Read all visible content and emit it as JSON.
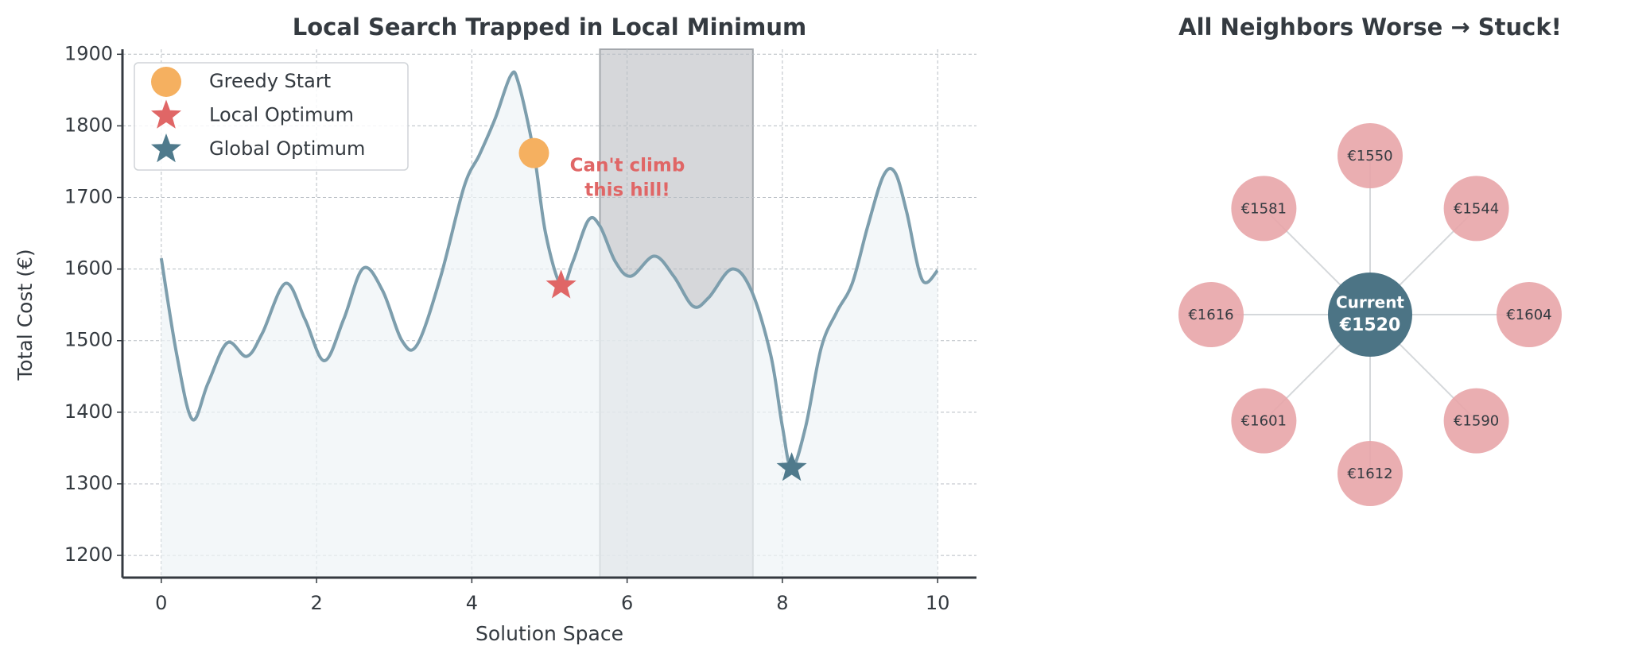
{
  "chart_data": [
    {
      "type": "line",
      "title": "Local Search Trapped in Local Minimum",
      "x_label": "Solution Space",
      "y_label": "Total Cost (€)",
      "xlim": [
        -0.5,
        10.5
      ],
      "ylim": [
        1169,
        1907
      ],
      "xticks": [
        0,
        2,
        4,
        6,
        8,
        10
      ],
      "yticks": [
        1200,
        1300,
        1400,
        1500,
        1600,
        1700,
        1800,
        1900
      ],
      "grid": true,
      "x": [
        0,
        0.2,
        0.4,
        0.6,
        0.85,
        1.1,
        1.3,
        1.6,
        1.85,
        2.1,
        2.35,
        2.6,
        2.85,
        3.1,
        3.3,
        3.6,
        3.9,
        4.1,
        4.3,
        4.5,
        4.6,
        4.8,
        4.95,
        5.15,
        5.3,
        5.5,
        5.65,
        5.85,
        6.05,
        6.35,
        6.6,
        6.85,
        7.05,
        7.35,
        7.6,
        7.85,
        8.0,
        8.12,
        8.3,
        8.5,
        8.7,
        8.9,
        9.1,
        9.3,
        9.45,
        9.6,
        9.8,
        10
      ],
      "series": [
        {
          "color": "#7d9ead",
          "fill": "#eef4f6",
          "values": [
            1615,
            1480,
            1390,
            1440,
            1497,
            1478,
            1510,
            1580,
            1530,
            1472,
            1530,
            1601,
            1570,
            1500,
            1495,
            1590,
            1715,
            1760,
            1810,
            1870,
            1860,
            1762,
            1650,
            1577,
            1610,
            1668,
            1660,
            1610,
            1590,
            1618,
            1590,
            1548,
            1560,
            1600,
            1570,
            1480,
            1380,
            1322,
            1380,
            1490,
            1540,
            1580,
            1660,
            1730,
            1735,
            1680,
            1585,
            1598
          ]
        }
      ],
      "markers": [
        {
          "name": "Greedy Start",
          "shape": "circle",
          "color": "#f5b060",
          "x": 4.8,
          "y": 1762
        },
        {
          "name": "Local Optimum",
          "shape": "star",
          "color": "#e06666",
          "x": 5.15,
          "y": 1577
        },
        {
          "name": "Global Optimum",
          "shape": "star",
          "color": "#4f7a8c",
          "x": 8.12,
          "y": 1322
        }
      ],
      "highlight_span": [
        5.65,
        7.62
      ],
      "highlight_color": "#a3a7ac",
      "annotation": [
        "Can't climb",
        "this hill!"
      ],
      "annotation_color": "#e06666",
      "legend": "upper left"
    },
    {
      "type": "neighbors",
      "title": "All Neighbors Worse → Stuck!",
      "center_label": "Current",
      "center_value": 1520,
      "center_value_label": "€1520",
      "center_color": "#4c7485",
      "neighbor_color": "#e8a5a8",
      "values": [
        1550,
        1544,
        1604,
        1590,
        1612,
        1601,
        1616,
        1581
      ],
      "value_labels": [
        "€1550",
        "€1544",
        "€1604",
        "€1590",
        "€1612",
        "€1601",
        "€1616",
        "€1581"
      ]
    }
  ]
}
